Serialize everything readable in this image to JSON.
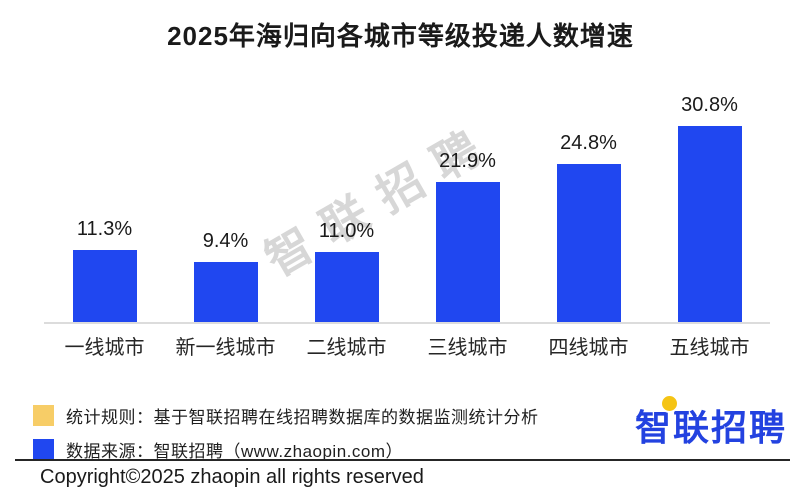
{
  "title": "2025年海归向各城市等级投递人数增速",
  "watermark": "智联招聘",
  "chart_data": {
    "type": "bar",
    "title": "2025年海归向各城市等级投递人数增速",
    "categories": [
      "一线城市",
      "新一线城市",
      "二线城市",
      "三线城市",
      "四线城市",
      "五线城市"
    ],
    "values": [
      11.3,
      9.4,
      11.0,
      21.9,
      24.8,
      30.8
    ],
    "value_labels": [
      "11.3%",
      "9.4%",
      "11.0%",
      "21.9%",
      "24.8%",
      "30.8%"
    ],
    "xlabel": "",
    "ylabel": "",
    "ylim": [
      0,
      32
    ],
    "grid": false,
    "legend_position": "none",
    "bar_color": "#2047f0",
    "axis_line_color": "#dcdcdc"
  },
  "legend": {
    "items": [
      {
        "swatch_color": "#f7cd67",
        "label": "统计规则：基于智联招聘在线招聘数据库的数据监测统计分析"
      },
      {
        "swatch_color": "#2047f0",
        "label": "数据来源：智联招聘（www.zhaopin.com）"
      }
    ]
  },
  "logo": {
    "text": "智联招聘",
    "color": "#2342e0",
    "accent_color": "#f5c414"
  },
  "footer": {
    "copyright": "Copyright©2025 zhaopin all rights reserved"
  }
}
